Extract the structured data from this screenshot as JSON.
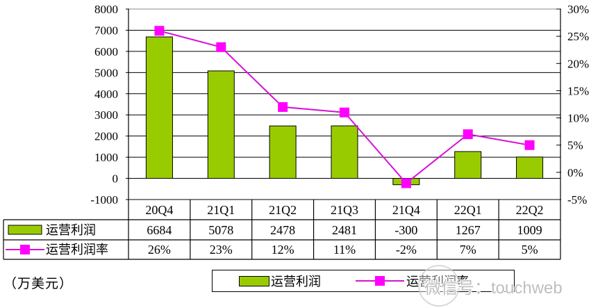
{
  "chart_data": {
    "type": "combo",
    "title": "",
    "categories": [
      "20Q4",
      "21Q1",
      "21Q2",
      "21Q3",
      "21Q4",
      "22Q1",
      "22Q2"
    ],
    "series": [
      {
        "name": "运营利润",
        "type": "bar",
        "axis": "left",
        "values": [
          6684,
          5078,
          2478,
          2481,
          -300,
          1267,
          1009
        ],
        "labels": [
          "6684",
          "5078",
          "2478",
          "2481",
          "-300",
          "1267",
          "1009"
        ],
        "color": "#99CC00"
      },
      {
        "name": "运营利润率",
        "type": "line",
        "axis": "right",
        "values": [
          26,
          23,
          12,
          11,
          -2,
          7,
          5
        ],
        "labels": [
          "26%",
          "23%",
          "12%",
          "11%",
          "-2%",
          "7%",
          "5%"
        ],
        "color": "#FF00FF",
        "line_color": "#D611D6"
      }
    ],
    "left_axis": {
      "min": -1000,
      "max": 8000,
      "step": 1000,
      "tick_labels": [
        "8000",
        "7000",
        "6000",
        "5000",
        "4000",
        "3000",
        "2000",
        "1000",
        "0",
        "-1000"
      ]
    },
    "right_axis": {
      "min": -5,
      "max": 30,
      "step": 5,
      "tick_labels": [
        "30%",
        "25%",
        "20%",
        "15%",
        "10%",
        "5%",
        "0%",
        "-5%"
      ]
    },
    "grid": true,
    "legend_position": "bottom",
    "data_table": true
  },
  "unit_note": "（万美元）",
  "legend": {
    "items": [
      {
        "label": "运营利润",
        "swatch": "bar"
      },
      {
        "label": "运营利润率",
        "swatch": "line-marker"
      }
    ]
  },
  "watermark": {
    "text": "微信号：touchweb"
  },
  "colors": {
    "bar": "#99CC00",
    "bar_border": "#000000",
    "line": "#D611D6",
    "marker": "#FF00FF",
    "grid": "#000000",
    "grid_top": "#8E8E8E",
    "axis": "#000000",
    "watermark_text": "#BFBFBF"
  }
}
